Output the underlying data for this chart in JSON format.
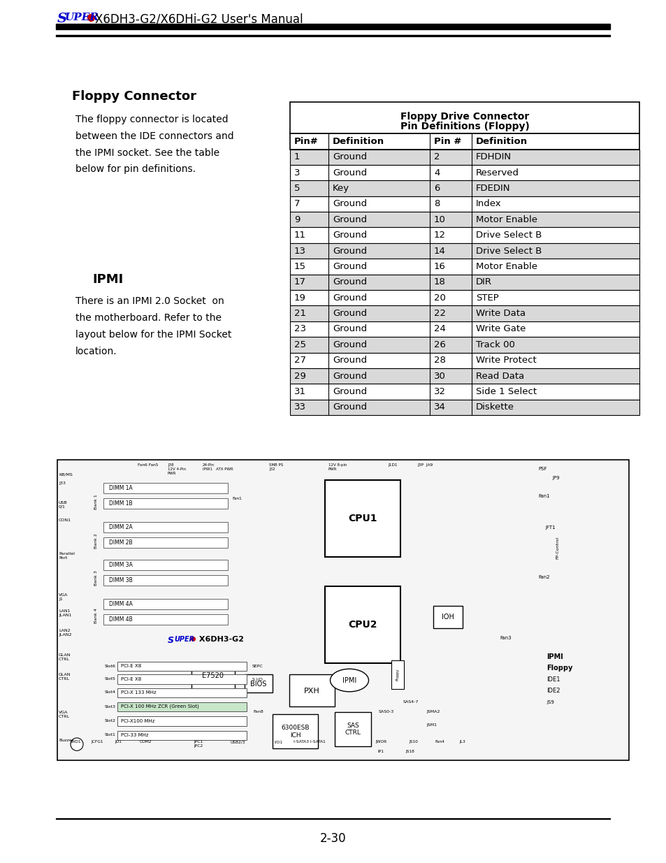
{
  "page_title_super": "SUPER",
  "page_title_rest": "X6DH3-G2/X6DHi-G2 User's Manual",
  "section1_title": "Floppy Connector",
  "section1_body": "The floppy connector is located\nbetween the IDE connectors and\nthe IPMI socket. See the table\nbelow for pin definitions.",
  "section2_title": "IPMI",
  "section2_body": "There is an IPMI 2.0 Socket  on\nthe motherboard. Refer to the\nlayout below for the IPMI Socket\nlocation.",
  "table_title1": "Floppy Drive Connector",
  "table_title2": "Pin Definitions (Floppy)",
  "col_headers": [
    "Pin#",
    "Definition",
    "Pin #",
    "Definition"
  ],
  "table_data": [
    [
      "1",
      "Ground",
      "2",
      "FDHDIN"
    ],
    [
      "3",
      "Ground",
      "4",
      "Reserved"
    ],
    [
      "5",
      "Key",
      "6",
      "FDEDIN"
    ],
    [
      "7",
      "Ground",
      "8",
      "Index"
    ],
    [
      "9",
      "Ground",
      "10",
      "Motor Enable"
    ],
    [
      "11",
      "Ground",
      "12",
      "Drive Select B"
    ],
    [
      "13",
      "Ground",
      "14",
      "Drive Select B"
    ],
    [
      "15",
      "Ground",
      "16",
      "Motor Enable"
    ],
    [
      "17",
      "Ground",
      "18",
      "DIR"
    ],
    [
      "19",
      "Ground",
      "20",
      "STEP"
    ],
    [
      "21",
      "Ground",
      "22",
      "Write Data"
    ],
    [
      "23",
      "Ground",
      "24",
      "Write Gate"
    ],
    [
      "25",
      "Ground",
      "26",
      "Track 00"
    ],
    [
      "27",
      "Ground",
      "28",
      "Write Protect"
    ],
    [
      "29",
      "Ground",
      "30",
      "Read Data"
    ],
    [
      "31",
      "Ground",
      "32",
      "Side 1 Select"
    ],
    [
      "33",
      "Ground",
      "34",
      "Diskette"
    ]
  ],
  "row_shaded_indices": [
    0,
    2,
    4,
    6,
    8,
    10,
    12,
    14,
    16
  ],
  "shaded_color": "#d9d9d9",
  "white_color": "#ffffff",
  "super_color": "#0000cc",
  "dot_color": "#cc0000",
  "page_number": "2-30",
  "bg_color": "#ffffff"
}
